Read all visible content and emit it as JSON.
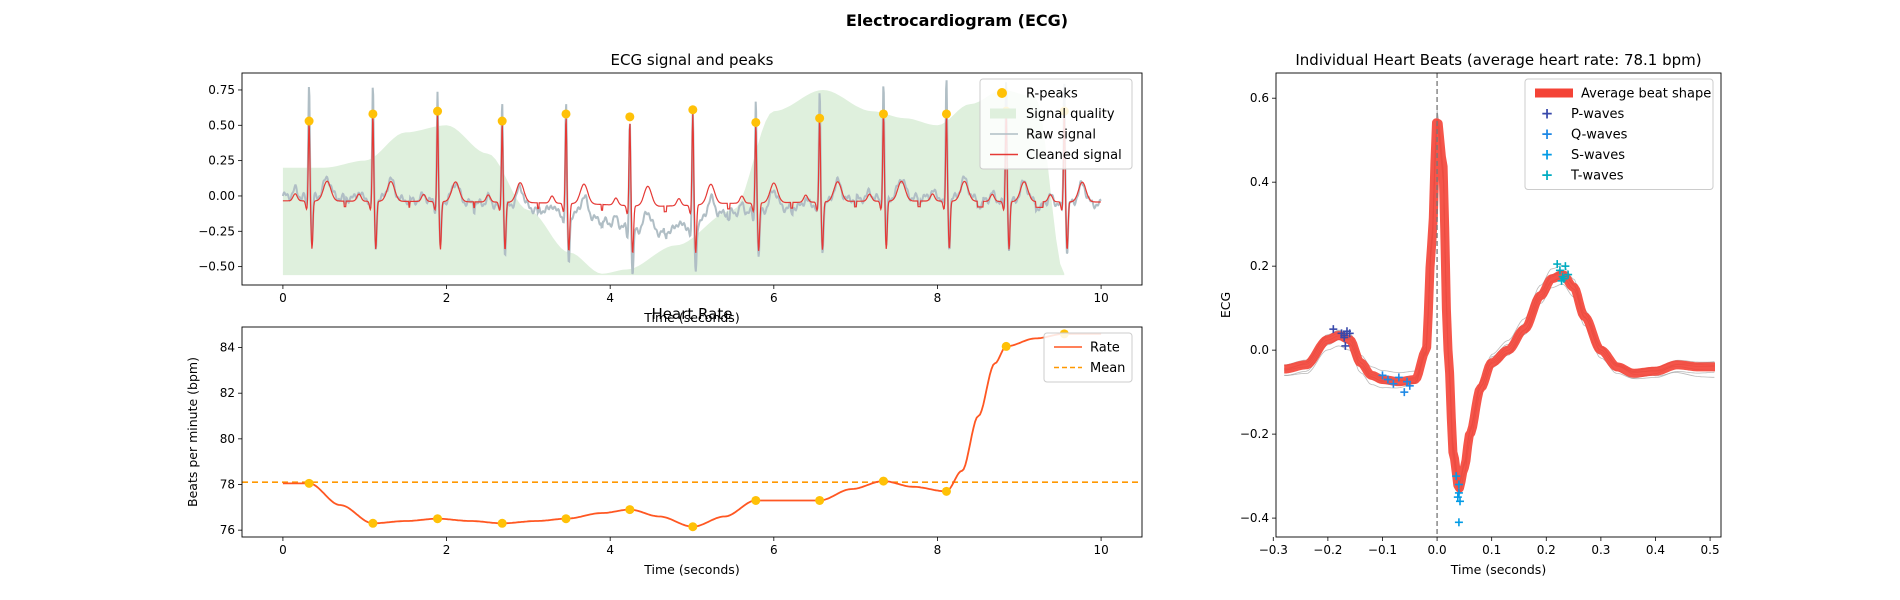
{
  "figure": {
    "title": "Electrocardiogram (ECG)"
  },
  "colors": {
    "raw": "#B0BEC5",
    "cleaned": "#E53935",
    "peaks": "#FFC107",
    "quality": "#DFF0DD",
    "rate": "#FF5722",
    "mean": "#FF9800",
    "avg_beat": "#F44336",
    "p": "#3949AB",
    "q": "#1E88E5",
    "s": "#039BE5",
    "t": "#00ACC1",
    "vline": "#777777"
  },
  "chart_data": [
    {
      "id": "ecg-signal",
      "type": "line",
      "title": "ECG signal and peaks",
      "xlabel": "Time (seconds)",
      "ylabel": "",
      "xlim": [
        -0.5,
        10.5
      ],
      "ylim": [
        -0.63,
        0.87
      ],
      "xticks": [
        0,
        2,
        4,
        6,
        8,
        10
      ],
      "yticks": [
        -0.5,
        -0.25,
        0,
        0.25,
        0.5,
        0.75
      ],
      "ytick_labels": [
        "−0.50",
        "−0.25",
        "0.00",
        "0.25",
        "0.50",
        "0.75"
      ],
      "legend": [
        "R-peaks",
        "Signal quality",
        "Raw signal",
        "Cleaned signal"
      ],
      "legend_loc": "upper right",
      "r_peaks": {
        "t": [
          0.32,
          1.1,
          1.89,
          2.68,
          3.46,
          4.24,
          5.01,
          5.78,
          6.56,
          7.34,
          8.11,
          8.84,
          9.55
        ],
        "v": [
          0.53,
          0.58,
          0.6,
          0.53,
          0.58,
          0.56,
          0.61,
          0.52,
          0.55,
          0.58,
          0.58,
          0.6,
          0.6
        ],
        "raw_amp": [
          0.79,
          0.76,
          0.74,
          0.72,
          0.73,
          0.74,
          0.77,
          0.78,
          0.76,
          0.79,
          0.8,
          0.82,
          0.83
        ]
      },
      "signal_quality": {
        "t": [
          0,
          0.5,
          1.0,
          1.5,
          2.0,
          2.5,
          3.0,
          3.5,
          3.9,
          4.2,
          4.8,
          5.5,
          6.0,
          6.6,
          7.2,
          7.6,
          8.0,
          8.4,
          8.8,
          9.2,
          9.55
        ],
        "v": [
          0.2,
          0.2,
          0.25,
          0.45,
          0.5,
          0.3,
          -0.1,
          -0.4,
          -0.55,
          -0.52,
          -0.35,
          -0.1,
          0.6,
          0.75,
          0.6,
          0.55,
          0.5,
          0.65,
          0.75,
          0.7,
          -0.55
        ]
      },
      "drift": {
        "t": [
          0,
          1.0,
          2.0,
          2.6,
          3.3,
          3.8,
          4.3,
          4.6,
          5.0,
          5.4,
          5.8,
          6.5,
          7.0,
          8.0,
          9.0,
          10.0
        ],
        "v": [
          0.04,
          0.02,
          0.0,
          -0.02,
          -0.07,
          -0.12,
          -0.2,
          -0.22,
          -0.17,
          -0.08,
          -0.07,
          -0.02,
          0.02,
          0.03,
          0.0,
          -0.02
        ]
      }
    },
    {
      "id": "heart-rate",
      "type": "line",
      "title": "Heart Rate",
      "xlabel": "Time (seconds)",
      "ylabel": "Beats per minute (bpm)",
      "xlim": [
        -0.5,
        10.5
      ],
      "ylim": [
        75.7,
        84.9
      ],
      "xticks": [
        0,
        2,
        4,
        6,
        8,
        10
      ],
      "yticks": [
        76,
        78,
        80,
        82,
        84
      ],
      "legend": [
        "Rate",
        "Mean"
      ],
      "legend_loc": "upper right",
      "mean": 78.1,
      "rate_points": {
        "x": [
          0.32,
          1.1,
          1.89,
          2.68,
          3.46,
          4.24,
          5.01,
          5.78,
          6.56,
          7.34,
          8.11,
          8.84,
          9.55
        ],
        "y": [
          78.05,
          76.3,
          76.5,
          76.3,
          76.5,
          76.9,
          76.15,
          77.3,
          77.3,
          78.15,
          77.7,
          84.05,
          84.6
        ]
      },
      "rate_curve": {
        "x": [
          0,
          0.32,
          0.7,
          1.1,
          1.5,
          1.89,
          2.3,
          2.68,
          3.1,
          3.46,
          3.9,
          4.24,
          4.6,
          5.01,
          5.4,
          5.78,
          6.2,
          6.56,
          6.95,
          7.34,
          7.7,
          8.11,
          8.3,
          8.5,
          8.7,
          8.84,
          9.2,
          9.55,
          10.0
        ],
        "y": [
          78.05,
          78.05,
          77.1,
          76.3,
          76.4,
          76.5,
          76.4,
          76.3,
          76.4,
          76.5,
          76.75,
          76.9,
          76.6,
          76.15,
          76.6,
          77.3,
          77.3,
          77.3,
          77.8,
          78.15,
          77.9,
          77.7,
          78.6,
          81.0,
          83.3,
          84.05,
          84.4,
          84.6,
          84.6
        ]
      }
    },
    {
      "id": "heart-beats",
      "type": "line",
      "title": "Individual Heart Beats (average heart rate: 78.1 bpm)",
      "xlabel": "Time (seconds)",
      "ylabel": "ECG",
      "xlim": [
        -0.295,
        0.52
      ],
      "ylim": [
        -0.445,
        0.66
      ],
      "xticks": [
        -0.3,
        -0.2,
        -0.1,
        0.0,
        0.1,
        0.2,
        0.3,
        0.4,
        0.5
      ],
      "xtick_labels": [
        "−0.3",
        "−0.2",
        "−0.1",
        "0.0",
        "0.1",
        "0.2",
        "0.3",
        "0.4",
        "0.5"
      ],
      "yticks": [
        -0.4,
        -0.2,
        0.0,
        0.2,
        0.4,
        0.6
      ],
      "ytick_labels": [
        "−0.4",
        "−0.2",
        "0.0",
        "0.2",
        "0.4",
        "0.6"
      ],
      "legend": [
        "Average beat shape",
        "P-waves",
        "Q-waves",
        "S-waves",
        "T-waves"
      ],
      "legend_loc": "upper right",
      "average_beat": {
        "x": [
          -0.28,
          -0.24,
          -0.2,
          -0.18,
          -0.16,
          -0.14,
          -0.12,
          -0.1,
          -0.07,
          -0.04,
          -0.02,
          -0.01,
          0.0,
          0.01,
          0.02,
          0.03,
          0.04,
          0.05,
          0.06,
          0.08,
          0.1,
          0.13,
          0.16,
          0.19,
          0.21,
          0.23,
          0.25,
          0.27,
          0.3,
          0.33,
          0.36,
          0.4,
          0.44,
          0.48,
          0.51
        ],
        "y": [
          -0.045,
          -0.035,
          0.025,
          0.035,
          0.025,
          -0.03,
          -0.06,
          -0.07,
          -0.075,
          -0.07,
          0.0,
          0.25,
          0.55,
          0.45,
          0.0,
          -0.25,
          -0.33,
          -0.28,
          -0.2,
          -0.09,
          -0.03,
          0.0,
          0.05,
          0.13,
          0.17,
          0.18,
          0.15,
          0.08,
          0.0,
          -0.04,
          -0.055,
          -0.05,
          -0.035,
          -0.04,
          -0.04
        ]
      },
      "p_waves": {
        "x": [
          -0.19,
          -0.175,
          -0.17,
          -0.165,
          -0.16,
          -0.17,
          -0.168
        ],
        "y": [
          0.05,
          0.04,
          0.035,
          0.045,
          0.04,
          0.03,
          0.01
        ]
      },
      "q_waves": {
        "x": [
          -0.1,
          -0.09,
          -0.08,
          -0.07,
          -0.06,
          -0.05,
          -0.055
        ],
        "y": [
          -0.06,
          -0.07,
          -0.08,
          -0.065,
          -0.1,
          -0.085,
          -0.075
        ]
      },
      "s_waves": {
        "x": [
          0.035,
          0.04,
          0.04,
          0.042,
          0.038,
          0.04
        ],
        "y": [
          -0.3,
          -0.32,
          -0.34,
          -0.36,
          -0.35,
          -0.41
        ]
      },
      "t_waves": {
        "x": [
          0.22,
          0.225,
          0.23,
          0.235,
          0.24,
          0.228,
          0.232
        ],
        "y": [
          0.205,
          0.19,
          0.175,
          0.2,
          0.18,
          0.165,
          0.17
        ]
      }
    }
  ]
}
